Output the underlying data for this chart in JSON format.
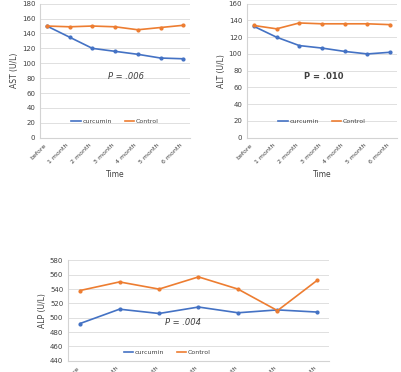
{
  "x_labels": [
    "before",
    "1 month",
    "2 month",
    "3 month",
    "4 month",
    "5 month",
    "6 month"
  ],
  "ast_curcumin": [
    150,
    135,
    120,
    116,
    112,
    107,
    106
  ],
  "ast_control": [
    150,
    149,
    150,
    149,
    145,
    148,
    151
  ],
  "ast_ylabel": "AST (U/L)",
  "ast_ylim": [
    0,
    180
  ],
  "ast_yticks": [
    0,
    20,
    40,
    60,
    80,
    100,
    120,
    140,
    160,
    180
  ],
  "ast_pvalue": "P = .006",
  "alt_curcumin": [
    133,
    120,
    110,
    107,
    103,
    100,
    102
  ],
  "alt_control": [
    134,
    130,
    137,
    136,
    136,
    136,
    135
  ],
  "alt_ylabel": "ALT (U/L)",
  "alt_ylim": [
    0,
    160
  ],
  "alt_yticks": [
    0,
    20,
    40,
    60,
    80,
    100,
    120,
    140,
    160
  ],
  "alt_pvalue": "P = .010",
  "alp_curcumin": [
    492,
    512,
    506,
    515,
    507,
    511,
    508
  ],
  "alp_control": [
    538,
    550,
    540,
    557,
    540,
    510,
    552
  ],
  "alp_ylabel": "ALP (U/L)",
  "alp_ylim": [
    440,
    580
  ],
  "alp_yticks": [
    440,
    460,
    480,
    500,
    520,
    540,
    560,
    580
  ],
  "alp_pvalue": "P = .004",
  "color_curcumin": "#4472C4",
  "color_control": "#ED7D31",
  "xlabel": "Time",
  "legend_curcumin": "curcumin",
  "legend_control": "Control",
  "bg_color": "#FFFFFF",
  "grid_color": "#D3D3D3",
  "text_color": "#404040"
}
